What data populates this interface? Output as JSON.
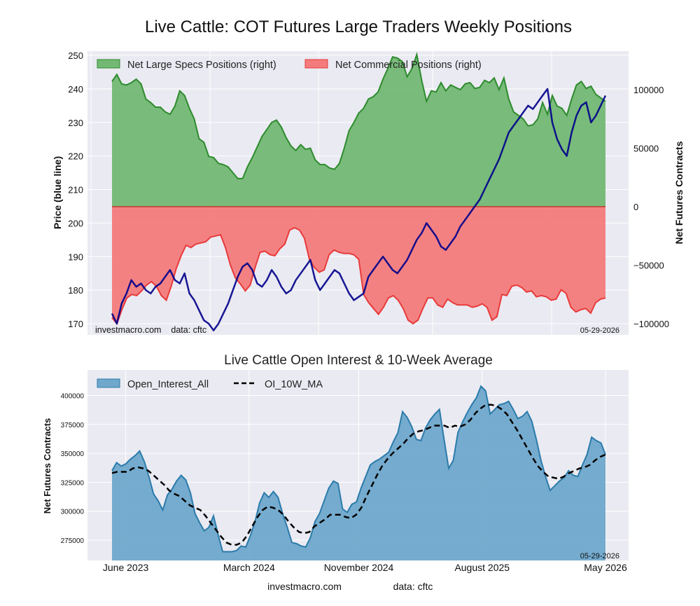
{
  "figure": {
    "title": "Live Cattle: COT Futures Large Traders Weekly Positions",
    "footer_site": "investmacro.com",
    "footer_data": "data: cftc"
  },
  "colors": {
    "specs_fill": "#73b873",
    "specs_line": "#2e8b2e",
    "comm_fill": "#f47b7b",
    "comm_line": "#e83a3a",
    "price_line": "#00008b",
    "oi_fill": "#6fa8cb",
    "oi_line": "#2b7bab",
    "ma_line": "#000000",
    "plot_bg": "#eaeaf2"
  },
  "chart_data": [
    {
      "type": "area",
      "title": "Live Cattle: COT Futures Large Traders Weekly Positions",
      "ylabel_left": "Price (blue line)",
      "ylabel_right": "Net Futures Contracts",
      "ylim_left": [
        170,
        251
      ],
      "ylim_right": [
        -100000,
        130000
      ],
      "yticks_left": [
        "250",
        "240",
        "230",
        "220",
        "210",
        "200",
        "190",
        "180",
        "170"
      ],
      "yticks_right": [
        "100000",
        "50000",
        "0",
        "−50000",
        "−100000"
      ],
      "legend_position": "top-left",
      "grid": true,
      "watermark_left": "investmacro.com    data: cftc",
      "watermark_right": "05-29-2026",
      "x_start": "2023-05",
      "x_end": "2026-05",
      "series": [
        {
          "name": "Net Large Specs Positions (right)",
          "axis": "right",
          "values": [
            107000,
            113000,
            105000,
            104000,
            106000,
            109000,
            105000,
            92000,
            89000,
            85000,
            85000,
            81000,
            79000,
            86000,
            99000,
            95000,
            84000,
            75000,
            58000,
            55000,
            43000,
            42000,
            37000,
            36000,
            34000,
            29000,
            24000,
            24000,
            34000,
            42000,
            51000,
            60000,
            66000,
            72000,
            74000,
            68000,
            59000,
            52000,
            48000,
            53000,
            49000,
            50000,
            40000,
            36000,
            36000,
            33000,
            32000,
            37000,
            50000,
            65000,
            72000,
            80000,
            84000,
            92000,
            94000,
            98000,
            109000,
            118000,
            128000,
            127000,
            124000,
            111000,
            118000,
            130000,
            108000,
            90000,
            99000,
            98000,
            106000,
            99000,
            104000,
            102000,
            100000,
            105000,
            106000,
            101000,
            102000,
            108000,
            106000,
            110000,
            100000,
            110000,
            92000,
            81000,
            78000,
            75000,
            69000,
            70000,
            75000,
            89000,
            79000,
            95000,
            86000,
            84000,
            78000,
            92000,
            104000,
            107000,
            101000,
            103000,
            96000,
            93000,
            90000
          ]
        },
        {
          "name": "Net Commercial Positions (right)",
          "axis": "right",
          "values": [
            -95000,
            -100000,
            -88000,
            -78000,
            -75000,
            -76000,
            -72000,
            -67000,
            -64000,
            -68000,
            -76000,
            -80000,
            -68000,
            -53000,
            -42000,
            -33000,
            -35000,
            -32000,
            -31000,
            -30000,
            -26000,
            -25000,
            -24000,
            -35000,
            -50000,
            -61000,
            -66000,
            -72000,
            -67000,
            -52000,
            -39000,
            -38000,
            -41000,
            -42000,
            -36000,
            -32000,
            -20000,
            -18000,
            -20000,
            -27000,
            -45000,
            -52000,
            -56000,
            -54000,
            -41000,
            -37000,
            -39000,
            -40000,
            -40000,
            -41000,
            -45000,
            -75000,
            -82000,
            -87000,
            -92000,
            -86000,
            -78000,
            -76000,
            -80000,
            -87000,
            -97000,
            -100000,
            -97000,
            -87000,
            -78000,
            -78000,
            -84000,
            -86000,
            -79000,
            -82000,
            -84000,
            -84000,
            -84000,
            -86000,
            -85000,
            -83000,
            -86000,
            -97000,
            -94000,
            -75000,
            -76000,
            -68000,
            -67000,
            -69000,
            -73000,
            -72000,
            -77000,
            -76000,
            -77000,
            -80000,
            -79000,
            -71000,
            -74000,
            -86000,
            -90000,
            -88000,
            -87000,
            -91000,
            -82000,
            -79000,
            -78000
          ]
        },
        {
          "name": "Price",
          "axis": "left",
          "values": [
            173,
            170,
            176,
            179,
            183,
            181,
            182,
            180,
            179,
            181,
            182,
            184,
            186,
            183,
            182,
            185,
            179,
            177,
            174,
            171,
            170,
            168,
            170,
            173,
            176,
            180,
            184,
            187,
            188,
            186,
            182,
            181,
            183,
            186,
            184,
            181,
            179,
            180,
            183,
            185,
            187,
            189,
            183,
            180,
            182,
            184,
            186,
            185,
            182,
            179,
            177,
            178,
            179,
            184,
            186,
            188,
            190,
            188,
            186,
            185,
            187,
            189,
            192,
            195,
            197,
            200,
            198,
            196,
            193,
            192,
            194,
            196,
            199,
            201,
            203,
            205,
            207,
            210,
            213,
            216,
            219,
            223,
            227,
            229,
            231,
            233,
            235,
            234,
            236,
            238,
            240,
            230,
            225,
            222,
            220,
            227,
            232,
            235,
            236,
            230,
            232,
            235,
            238
          ]
        }
      ]
    },
    {
      "type": "area",
      "title": "Live Cattle Open Interest & 10-Week Average",
      "ylabel": "Net Futures Contracts",
      "ylim": [
        256000,
        421000
      ],
      "yticks": [
        "400000",
        "375000",
        "350000",
        "325000",
        "300000",
        "275000"
      ],
      "legend_position": "top-left",
      "grid": true,
      "watermark_right": "05-29-2026",
      "xtick_labels": [
        "June 2023",
        "March 2024",
        "November 2024",
        "August 2025",
        "May 2026"
      ],
      "x_start": "2023-05",
      "x_end": "2026-05",
      "series": [
        {
          "name": "Open_Interest_All",
          "values": [
            335000,
            342000,
            339000,
            341000,
            345000,
            348000,
            352000,
            343000,
            330000,
            315000,
            309000,
            301000,
            314000,
            319000,
            326000,
            331000,
            327000,
            316000,
            298000,
            290000,
            283000,
            286000,
            296000,
            280000,
            265000,
            265000,
            265000,
            266000,
            270000,
            269000,
            279000,
            291000,
            307000,
            316000,
            312000,
            317000,
            312000,
            298000,
            286000,
            273000,
            272000,
            270000,
            269000,
            277000,
            291000,
            298000,
            309000,
            320000,
            326000,
            324000,
            302000,
            299000,
            306000,
            308000,
            320000,
            330000,
            340000,
            343000,
            345000,
            348000,
            351000,
            360000,
            368000,
            386000,
            381000,
            373000,
            362000,
            361000,
            372000,
            379000,
            384000,
            388000,
            362000,
            337000,
            344000,
            368000,
            377000,
            385000,
            392000,
            398000,
            408000,
            404000,
            384000,
            388000,
            392000,
            393000,
            395000,
            388000,
            380000,
            382000,
            386000,
            378000,
            362000,
            344000,
            330000,
            318000,
            322000,
            326000,
            329000,
            335000,
            331000,
            330000,
            340000,
            349000,
            364000,
            361000,
            359000,
            349000
          ]
        },
        {
          "name": "OI_10W_MA",
          "values": [
            333000,
            334000,
            334000,
            334000,
            337000,
            338000,
            337000,
            335000,
            331000,
            327000,
            323000,
            318000,
            315000,
            313000,
            309000,
            305000,
            303000,
            301000,
            296000,
            290000,
            284000,
            278000,
            273000,
            271000,
            271000,
            273000,
            279000,
            287000,
            295000,
            301000,
            304000,
            303000,
            301000,
            297000,
            291000,
            286000,
            282000,
            281000,
            282000,
            287000,
            290000,
            293000,
            297000,
            297000,
            297000,
            295000,
            294000,
            297000,
            303000,
            313000,
            322000,
            331000,
            339000,
            345000,
            350000,
            354000,
            358000,
            363000,
            367000,
            369000,
            370000,
            372000,
            374000,
            374000,
            374000,
            372000,
            374000,
            373000,
            375000,
            379000,
            385000,
            389000,
            392000,
            392000,
            391000,
            388000,
            384000,
            377000,
            370000,
            362000,
            354000,
            346000,
            339000,
            334000,
            330000,
            329000,
            328000,
            330000,
            333000,
            335000,
            337000,
            338000,
            340000,
            344000,
            347000,
            349000
          ]
        }
      ]
    }
  ]
}
